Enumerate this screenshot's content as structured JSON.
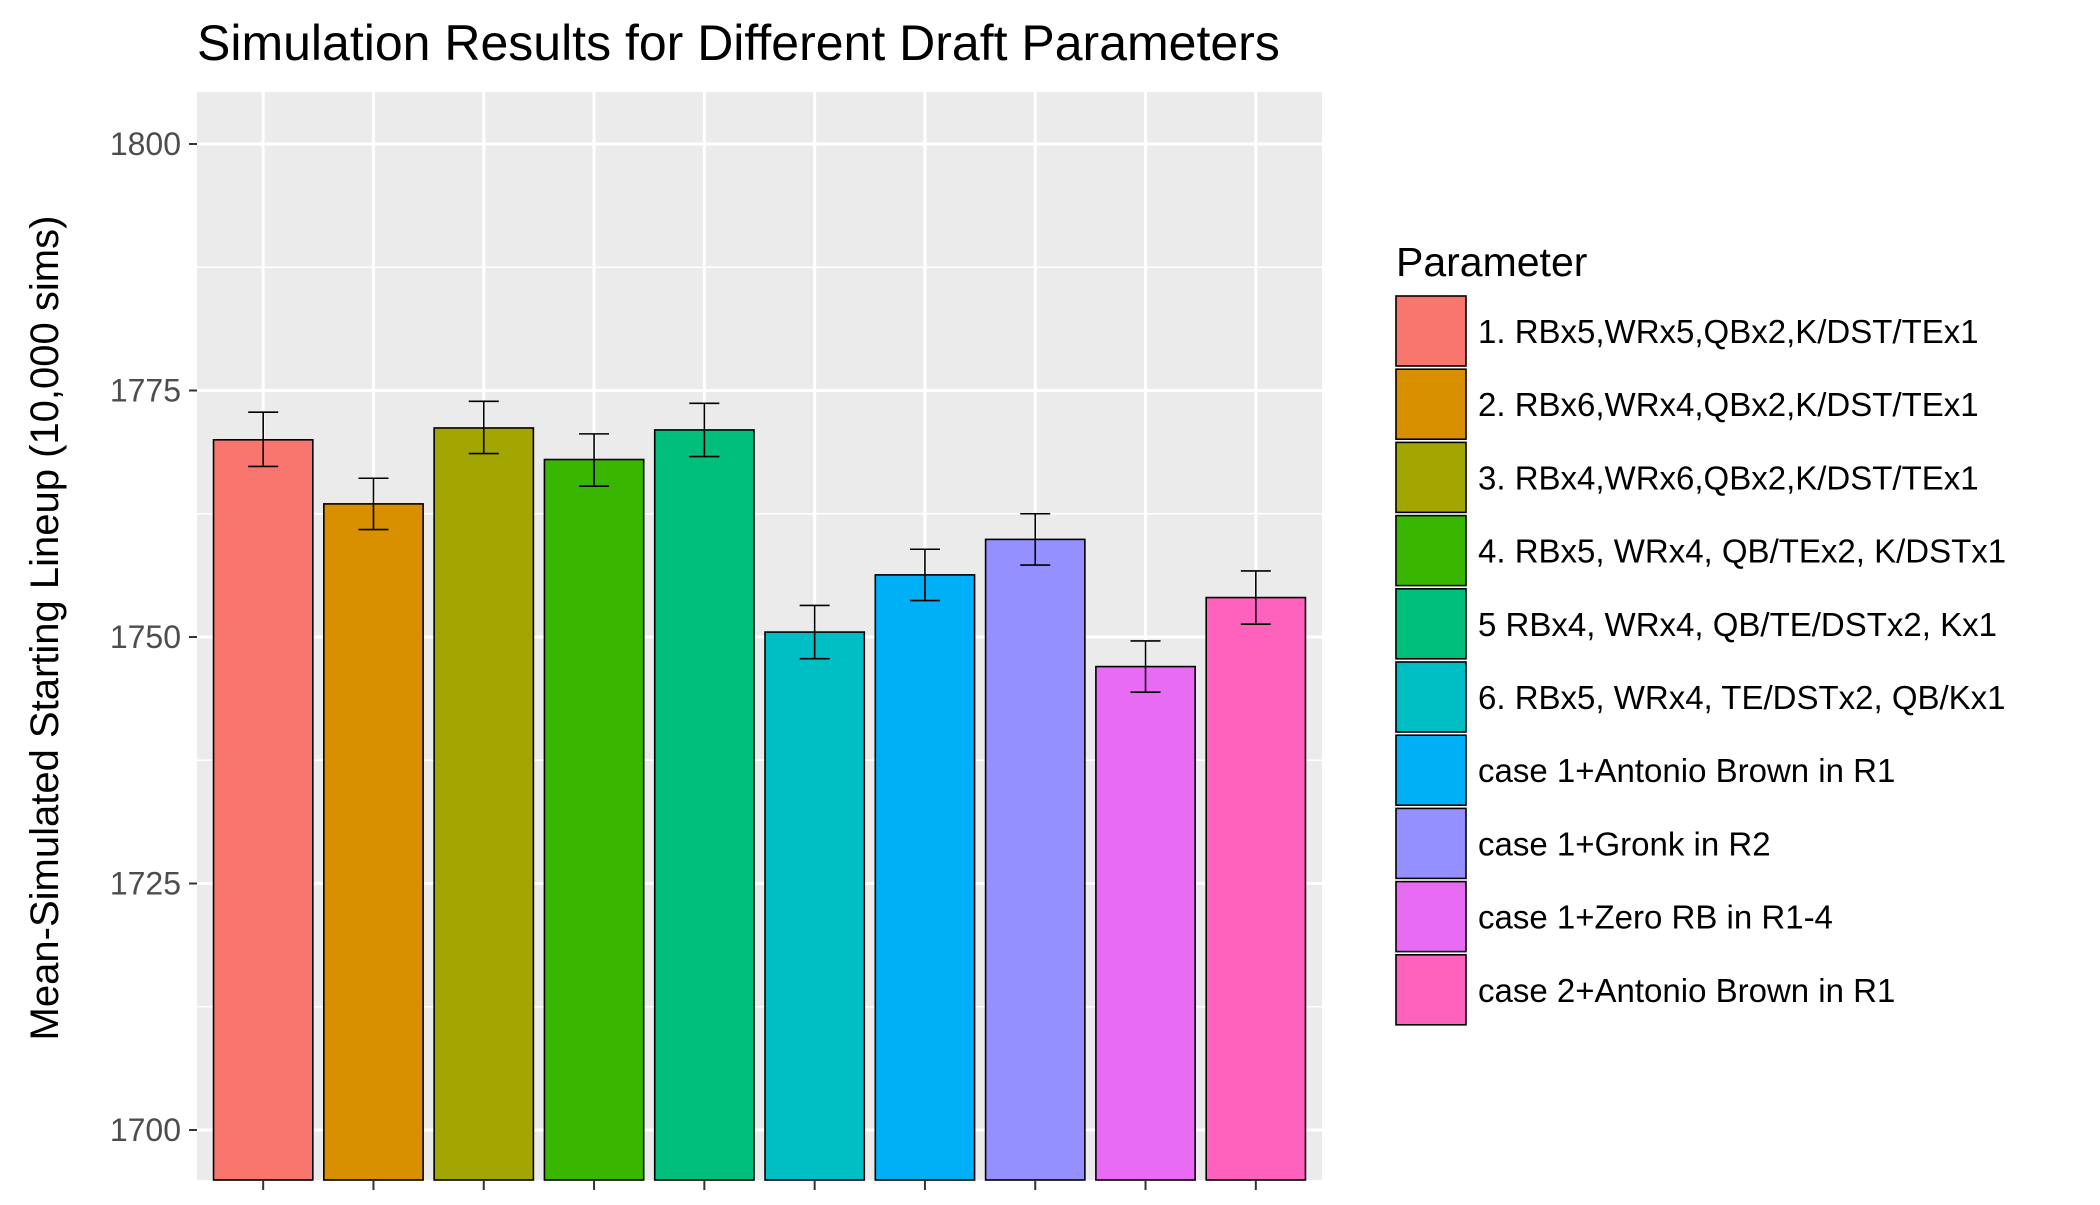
{
  "chart_data": {
    "type": "bar",
    "title": "Simulation Results for Different Draft Parameters",
    "xlabel": "",
    "ylabel": "Mean-Simulated Starting Lineup (10,000 sims)",
    "ylim": [
      1695,
      1805
    ],
    "y_ticks": [
      1700,
      1725,
      1750,
      1775,
      1800
    ],
    "grid": true,
    "legend_title": "Parameter",
    "legend_position": "right",
    "categories": [
      "1. RBx5,WRx5,QBx2,K/DST/TEx1",
      "2. RBx6,WRx4,QBx2,K/DST/TEx1",
      "3. RBx4,WRx6,QBx2,K/DST/TEx1",
      "4. RBx5, WRx4, QB/TEx2, K/DSTx1",
      "5 RBx4, WRx4, QB/TE/DSTx2, Kx1",
      "6. RBx5, WRx4, TE/DSTx2, QB/Kx1",
      "case 1+Antonio Brown in R1",
      "case 1+Gronk in R2",
      "case 1+Zero RB in R1-4",
      "case 2+Antonio Brown in R1"
    ],
    "values": [
      1770.0,
      1763.5,
      1771.2,
      1768.0,
      1771.0,
      1750.5,
      1756.3,
      1759.9,
      1747.0,
      1754.0
    ],
    "error_low": [
      1767.3,
      1760.9,
      1768.6,
      1765.3,
      1768.3,
      1747.8,
      1753.7,
      1757.3,
      1744.4,
      1751.3
    ],
    "error_high": [
      1772.8,
      1766.1,
      1773.9,
      1770.6,
      1773.7,
      1753.2,
      1758.9,
      1762.5,
      1749.6,
      1756.7
    ],
    "colors": [
      "#F8766D",
      "#D89000",
      "#A3A500",
      "#39B600",
      "#00BF7D",
      "#00BFC4",
      "#00B0F6",
      "#9590FF",
      "#E76BF3",
      "#FF62BC"
    ]
  }
}
